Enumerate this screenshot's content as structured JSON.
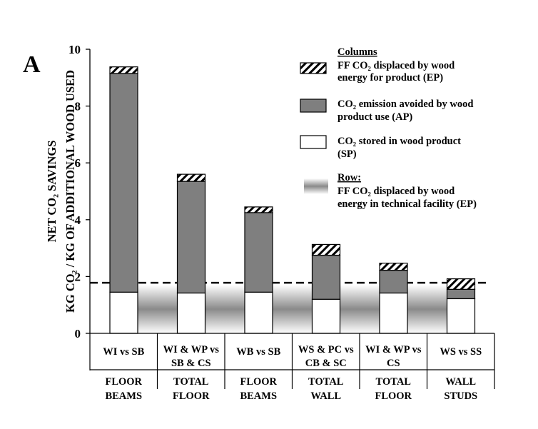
{
  "panel_label": "A",
  "chart_data": {
    "type": "bar",
    "stacked": true,
    "ylabel": [
      "NET CO₂ SAVINGS",
      "KG CO₂ / KG OF ADDITIONAL WOOD USED"
    ],
    "ylim": [
      0,
      10
    ],
    "yticks": [
      "0",
      "2",
      "4",
      "6",
      "8",
      "10"
    ],
    "categories": [
      "WI vs SB",
      "WI & WP vs SB & CS",
      "WB vs SB",
      "WS & PC vs CB & SC",
      "WI & WP vs CS",
      "WS vs SS"
    ],
    "category_lines": [
      [
        "WI vs SB"
      ],
      [
        "WI & WP vs",
        "SB & CS"
      ],
      [
        "WB vs SB"
      ],
      [
        "WS & PC vs",
        "CB & SC"
      ],
      [
        "WI & WP vs",
        "CS"
      ],
      [
        "WS vs SS"
      ]
    ],
    "groups": [
      [
        "FLOOR",
        "BEAMS"
      ],
      [
        "TOTAL",
        "FLOOR"
      ],
      [
        "FLOOR",
        "BEAMS"
      ],
      [
        "TOTAL",
        "WALL"
      ],
      [
        "TOTAL",
        "FLOOR"
      ],
      [
        "WALL",
        "STUDS"
      ]
    ],
    "series": [
      {
        "name": "SP",
        "values": [
          1.45,
          1.42,
          1.45,
          1.2,
          1.42,
          1.22
        ]
      },
      {
        "name": "AP",
        "values": [
          7.7,
          3.93,
          2.8,
          1.55,
          0.8,
          0.33
        ]
      },
      {
        "name": "EP",
        "values": [
          0.23,
          0.25,
          0.2,
          0.38,
          0.25,
          0.37
        ]
      }
    ],
    "row_ep": {
      "name": "EP",
      "value": 1.78
    },
    "legend": {
      "columns_title": "Columns",
      "ep_lines": [
        "FF CO₂ displaced by wood",
        "energy for product (EP)"
      ],
      "ap_lines": [
        "CO₂ emission avoided by wood",
        "product use (AP)"
      ],
      "sp_lines": [
        "CO₂ stored in wood product",
        "(SP)"
      ],
      "row_title": "Row:",
      "row_lines": [
        "FF CO₂ displaced by wood",
        "energy in technical facility (EP)"
      ]
    },
    "colors": {
      "ap": "#7f7f7f",
      "sp": "#ffffff",
      "axis": "#000000"
    }
  }
}
